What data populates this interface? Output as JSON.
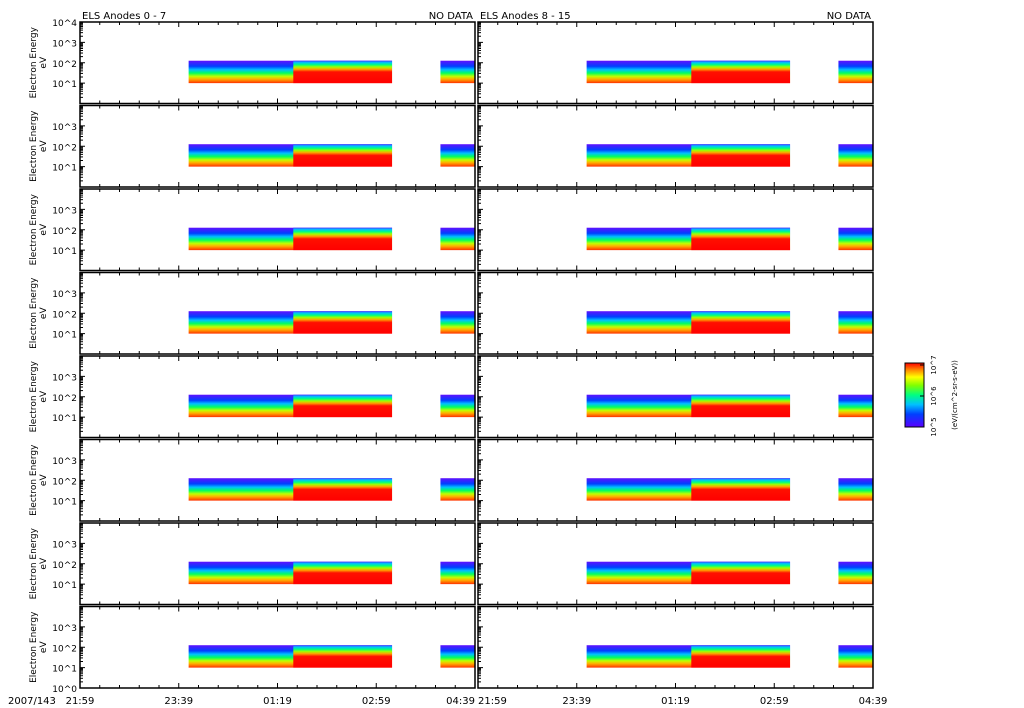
{
  "chart_data": {
    "type": "heatmap",
    "date_label": "2007/143",
    "columns": [
      {
        "title": "ELS Anodes 0 - 7",
        "status": "NO DATA"
      },
      {
        "title": "ELS Anodes 8 - 15",
        "status": "NO DATA"
      }
    ],
    "rows": 8,
    "ylabel": "Electron Energy",
    "yunits": "eV",
    "ylim_log10": [
      0,
      4
    ],
    "y_tick_labels": [
      "10^0",
      "10^1",
      "10^2",
      "10^3",
      "10^4"
    ],
    "x_range_minutes": [
      0,
      400
    ],
    "x_ticks": [
      {
        "label": "21:59",
        "minutes": 0
      },
      {
        "label": "23:39",
        "minutes": 100
      },
      {
        "label": "01:19",
        "minutes": 200
      },
      {
        "label": "02:59",
        "minutes": 300
      },
      {
        "label": "04:39",
        "minutes": 400
      }
    ],
    "data_segments_minutes": [
      [
        110,
        316
      ],
      [
        365,
        400
      ]
    ],
    "energy_band_log10": [
      1.0,
      2.1
    ],
    "hot_region_start_minutes": 216,
    "colorbar": {
      "label": "(eV/(cm^2-sr-s-eV))",
      "tick_labels": [
        "10^5",
        "10^6",
        "10^7"
      ],
      "colors": [
        "#5a00ff",
        "#0040ff",
        "#00c0ff",
        "#00ff80",
        "#80ff00",
        "#ffff00",
        "#ff8000",
        "#ff0000"
      ]
    }
  }
}
